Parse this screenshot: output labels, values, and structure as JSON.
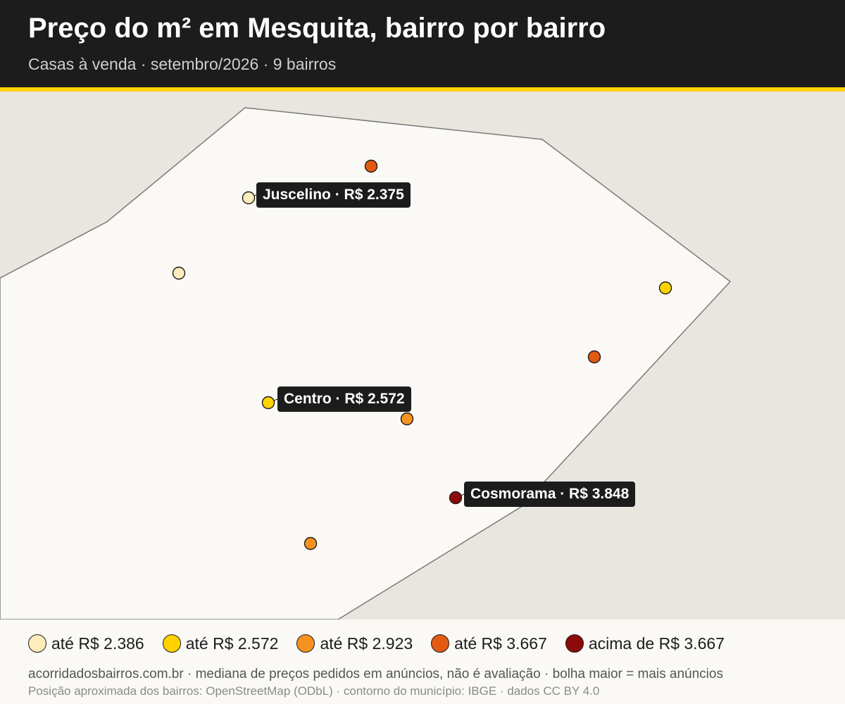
{
  "header": {
    "title": "Preço do m² em Mesquita, bairro por bairro",
    "subtitle": "Casas à venda · setembro/2026 · 9 bairros"
  },
  "colors": {
    "header_bg": "#1c1c1c",
    "accent": "#ffd200",
    "land": "#faf9f5",
    "outside": "#e9e6e0",
    "boundary": "#7a7a7a",
    "class_1": "#fcedbb",
    "class_2": "#ffd200",
    "class_3": "#f7921e",
    "class_4": "#e35a12",
    "class_5": "#8e0a0a"
  },
  "map": {
    "neighborhoods": [
      {
        "name": "Juscelino",
        "price_label": "R$ 2.375",
        "price_class": 1,
        "labeled": true
      },
      {
        "name": "Centro",
        "price_label": "R$ 2.572",
        "price_class": 2,
        "labeled": true
      },
      {
        "name": "Cosmorama",
        "price_label": "R$ 3.848",
        "price_class": 5,
        "labeled": true
      },
      {
        "price_class": 4,
        "labeled": false
      },
      {
        "price_class": 1,
        "labeled": false
      },
      {
        "price_class": 2,
        "labeled": false
      },
      {
        "price_class": 4,
        "labeled": false
      },
      {
        "price_class": 3,
        "labeled": false
      },
      {
        "price_class": 3,
        "labeled": false
      }
    ],
    "callouts": {
      "juscelino": "Juscelino · R$ 2.375",
      "centro": "Centro · R$ 2.572",
      "cosmorama": "Cosmorama · R$ 3.848"
    }
  },
  "legend": {
    "items": [
      {
        "label": "até R$ 2.386",
        "color": "#fcedbb"
      },
      {
        "label": "até R$ 2.572",
        "color": "#ffd200"
      },
      {
        "label": "até R$ 2.923",
        "color": "#f7921e"
      },
      {
        "label": "até R$ 3.667",
        "color": "#e35a12"
      },
      {
        "label": "acima de R$ 3.667",
        "color": "#8e0a0a"
      }
    ]
  },
  "footer": {
    "note": "acorridadosbairros.com.br · mediana de preços pedidos em anúncios, não é avaliação · bolha maior = mais anúncios",
    "credits": "Posição aproximada dos bairros: OpenStreetMap (ODbL) · contorno do município: IBGE · dados CC BY 4.0"
  }
}
